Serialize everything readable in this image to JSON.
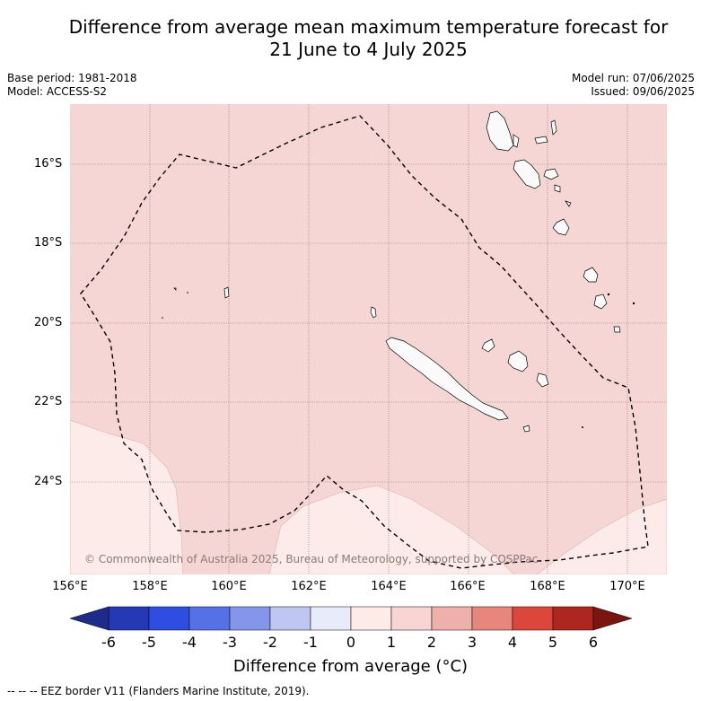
{
  "title": {
    "line1": "Difference from average mean maximum temperature forecast for",
    "line2": "21 June to 4 July 2025"
  },
  "meta_left": {
    "base_period": "Base period: 1981-2018",
    "model": "Model: ACCESS-S2"
  },
  "meta_right": {
    "model_run": "Model run: 07/06/2025",
    "issued": "Issued: 09/06/2025"
  },
  "map": {
    "copyright": "© Commonwealth of Australia 2025, Bureau of Meteorology, supported by COSPPac",
    "latitude_labels": [
      "16°S",
      "18°S",
      "20°S",
      "22°S",
      "24°S"
    ],
    "longitude_labels": [
      "156°E",
      "158°E",
      "160°E",
      "162°E",
      "164°E",
      "166°E",
      "168°E",
      "170°E"
    ],
    "lon_range": [
      156,
      171
    ],
    "lat_range": [
      -26.3,
      -14.8
    ],
    "shading": {
      "base_class": "0 to 1",
      "lower_class": "0 to 0.5"
    },
    "eez_style": "dashed black",
    "grid": true
  },
  "colorbar": {
    "ticks": [
      "-6",
      "-5",
      "-4",
      "-3",
      "-2",
      "-1",
      "0",
      "1",
      "2",
      "3",
      "4",
      "5",
      "6"
    ],
    "colors": [
      "#1e2b8a",
      "#2639b5",
      "#2f4de0",
      "#5670e6",
      "#8496ea",
      "#c0c6f2",
      "#e8ecfa",
      "#fdebe8",
      "#f6d5d3",
      "#eeb0aa",
      "#e6867d",
      "#dc473c",
      "#ad2720",
      "#7a1510"
    ],
    "label": "Difference from average (°C)"
  },
  "footer": {
    "legend": "-- -- -- EEZ border V11 (Flanders Marine Institute, 2019)."
  }
}
